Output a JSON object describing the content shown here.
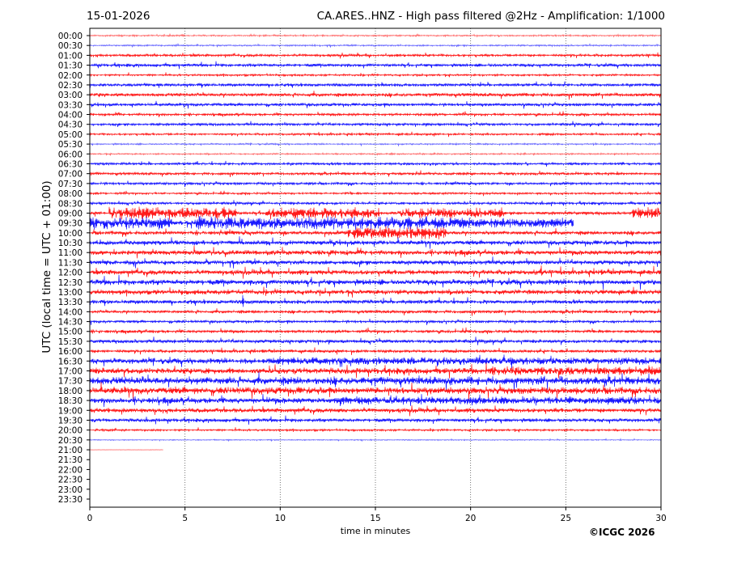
{
  "header": {
    "date": "15-01-2026",
    "title": "CA.ARES..HNZ - High pass filtered @2Hz - Amplification: 1/1000"
  },
  "copyright": "©ICGC 2026",
  "chart_data": {
    "type": "line",
    "title": "CA.ARES..HNZ - High pass filtered @2Hz - Amplification: 1/1000",
    "xlabel": "time in minutes",
    "ylabel": "UTC (local time = UTC + 01:00)",
    "xlim": [
      0,
      30
    ],
    "xticks": [
      "0",
      "5",
      "10",
      "15",
      "20",
      "25",
      "30"
    ],
    "grid": "vertical dotted lines at 5-minute ticks",
    "colors": [
      "#ff0000",
      "#0000ff"
    ],
    "rows": [
      {
        "label": "00:00",
        "base": 0.15
      },
      {
        "label": "00:30",
        "base": 0.15
      },
      {
        "label": "01:00",
        "base": 0.25
      },
      {
        "label": "01:30",
        "base": 0.3
      },
      {
        "label": "02:00",
        "base": 0.2
      },
      {
        "label": "02:30",
        "base": 0.3
      },
      {
        "label": "03:00",
        "base": 0.35
      },
      {
        "label": "03:30",
        "base": 0.3
      },
      {
        "label": "04:00",
        "base": 0.25
      },
      {
        "label": "04:30",
        "base": 0.25
      },
      {
        "label": "05:00",
        "base": 0.2
      },
      {
        "label": "05:30",
        "base": 0.15
      },
      {
        "label": "06:00",
        "base": 0.15
      },
      {
        "label": "06:30",
        "base": 0.25
      },
      {
        "label": "07:00",
        "base": 0.25
      },
      {
        "label": "07:30",
        "base": 0.25
      },
      {
        "label": "08:00",
        "base": 0.2
      },
      {
        "label": "08:30",
        "base": 0.25
      },
      {
        "label": "09:00",
        "base": 0.3,
        "bursts": [
          [
            1,
            7.7,
            1.3
          ],
          [
            9.2,
            15.2,
            1.2
          ],
          [
            16.3,
            21.7,
            1.1
          ],
          [
            28.5,
            30,
            1.3
          ]
        ]
      },
      {
        "label": "09:30",
        "base": 0.5,
        "end": 25.4,
        "bursts": [
          [
            0,
            4.3,
            1.3
          ],
          [
            5.5,
            20,
            1.4
          ],
          [
            20,
            25.4,
            1.0
          ]
        ]
      },
      {
        "label": "10:00",
        "base": 0.4,
        "bursts": [
          [
            13.5,
            18.7,
            1.4
          ]
        ]
      },
      {
        "label": "10:30",
        "base": 0.45
      },
      {
        "label": "11:00",
        "base": 0.5
      },
      {
        "label": "11:30",
        "base": 0.45
      },
      {
        "label": "12:00",
        "base": 0.5,
        "spikes": [
          [
            23.7,
            2.6
          ]
        ]
      },
      {
        "label": "12:30",
        "base": 0.55
      },
      {
        "label": "13:00",
        "base": 0.5
      },
      {
        "label": "13:30",
        "base": 0.4,
        "spikes": [
          [
            8.05,
            2.6
          ]
        ]
      },
      {
        "label": "14:00",
        "base": 0.3
      },
      {
        "label": "14:30",
        "base": 0.25
      },
      {
        "label": "15:00",
        "base": 0.3
      },
      {
        "label": "15:30",
        "base": 0.35
      },
      {
        "label": "16:00",
        "base": 0.3
      },
      {
        "label": "16:30",
        "base": 0.55,
        "bursts": [
          [
            9,
            30,
            0.8
          ]
        ]
      },
      {
        "label": "17:00",
        "base": 0.6,
        "bursts": [
          [
            21,
            30,
            0.9
          ]
        ]
      },
      {
        "label": "17:30",
        "base": 0.8,
        "spikes": [
          [
            14.6,
            1.2
          ]
        ]
      },
      {
        "label": "18:00",
        "base": 0.7
      },
      {
        "label": "18:30",
        "base": 0.6,
        "bursts": [
          [
            13,
            30,
            0.8
          ]
        ]
      },
      {
        "label": "19:00",
        "base": 0.45
      },
      {
        "label": "19:30",
        "base": 0.35
      },
      {
        "label": "20:00",
        "base": 0.2
      },
      {
        "label": "20:30",
        "base": 0.1
      },
      {
        "label": "21:00",
        "base": 0.05,
        "end": 3.85
      },
      {
        "label": "21:30",
        "base": 0,
        "end": 0
      },
      {
        "label": "22:00",
        "base": 0,
        "end": 0
      },
      {
        "label": "22:30",
        "base": 0,
        "end": 0
      },
      {
        "label": "23:00",
        "base": 0,
        "end": 0
      },
      {
        "label": "23:30",
        "base": 0,
        "end": 0
      }
    ]
  }
}
